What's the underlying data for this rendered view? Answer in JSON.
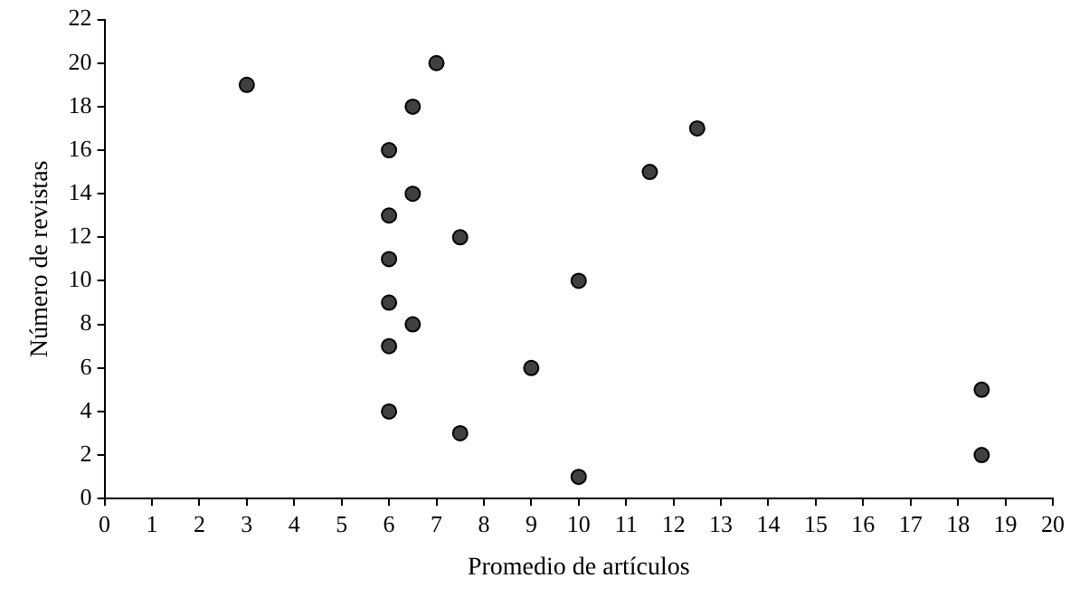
{
  "chart_data": {
    "type": "scatter",
    "xlabel": "Promedio de artículos",
    "ylabel": "Número de revistas",
    "x": [
      3,
      7,
      6.5,
      12.5,
      6,
      11.5,
      6.5,
      6,
      7.5,
      6,
      10,
      6,
      6.5,
      6,
      9,
      18.5,
      6,
      7.5,
      18.5,
      10
    ],
    "values": [
      19,
      20,
      18,
      17,
      16,
      15,
      14,
      13,
      12,
      11,
      10,
      9,
      8,
      7,
      6,
      5,
      4,
      3,
      2,
      1
    ],
    "color": "#404040",
    "marker": "circle",
    "xlim": [
      0,
      20
    ],
    "xticks": [
      0,
      1,
      2,
      3,
      4,
      5,
      6,
      7,
      8,
      9,
      10,
      11,
      12,
      13,
      14,
      15,
      16,
      17,
      18,
      19,
      20
    ],
    "ylim": [
      0,
      22
    ],
    "yticks": [
      0,
      2,
      4,
      6,
      8,
      10,
      12,
      14,
      16,
      18,
      20,
      22
    ],
    "grid": false,
    "legend": false
  }
}
